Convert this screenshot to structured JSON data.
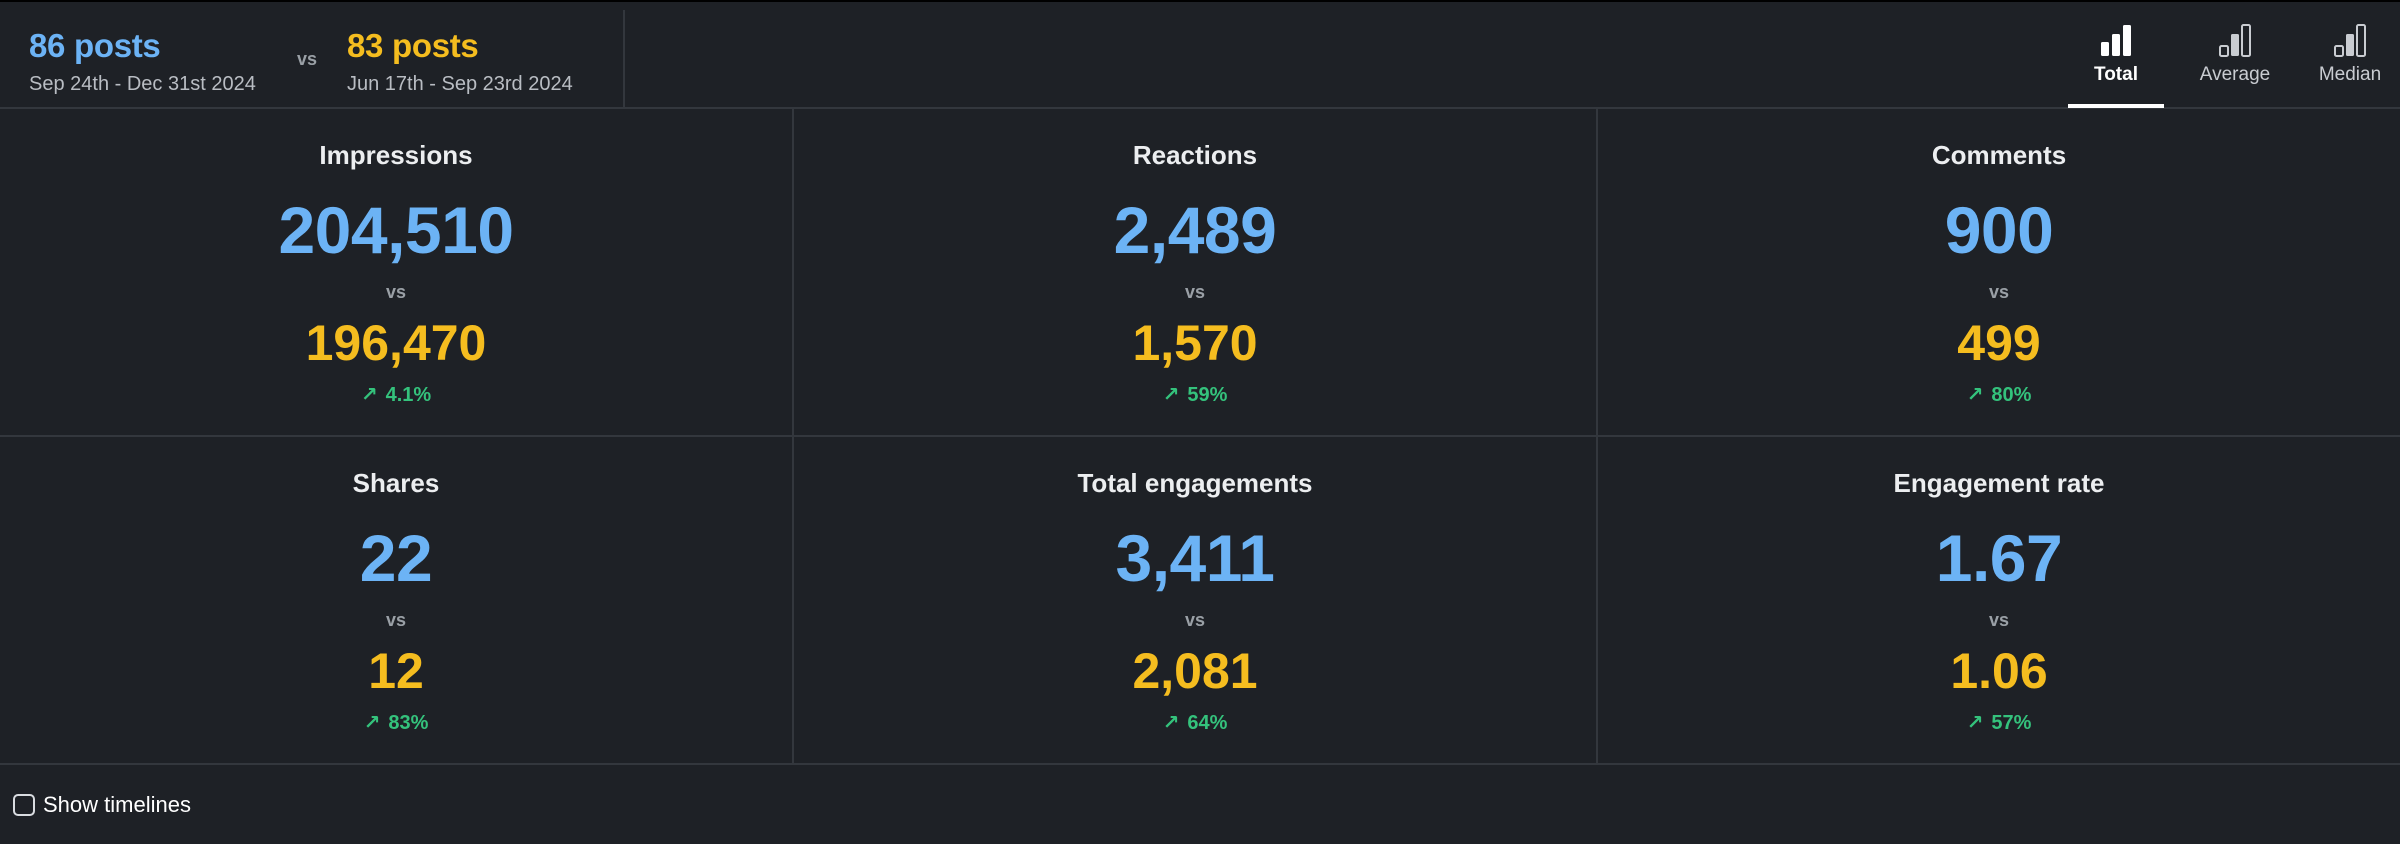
{
  "header": {
    "current_period": {
      "posts": "86 posts",
      "dates": "Sep 24th - Dec 31st 2024",
      "color": "#6cb3f5"
    },
    "vs_label": "vs",
    "previous_period": {
      "posts": "83 posts",
      "dates": "Jun 17th - Sep 23rd 2024",
      "color": "#f5bd1f"
    },
    "mode_tabs": [
      {
        "label": "Total",
        "icon": "bar-chart-filled-icon",
        "active": true
      },
      {
        "label": "Average",
        "icon": "bar-chart-average-icon",
        "active": false
      },
      {
        "label": "Median",
        "icon": "bar-chart-median-icon",
        "active": false
      }
    ]
  },
  "metrics": [
    {
      "title": "Impressions",
      "current": "204,510",
      "vs": "vs",
      "previous": "196,470",
      "change": "4.1%",
      "trend": "up"
    },
    {
      "title": "Reactions",
      "current": "2,489",
      "vs": "vs",
      "previous": "1,570",
      "change": "59%",
      "trend": "up"
    },
    {
      "title": "Comments",
      "current": "900",
      "vs": "vs",
      "previous": "499",
      "change": "80%",
      "trend": "up"
    },
    {
      "title": "Shares",
      "current": "22",
      "vs": "vs",
      "previous": "12",
      "change": "83%",
      "trend": "up"
    },
    {
      "title": "Total engagements",
      "current": "3,411",
      "vs": "vs",
      "previous": "2,081",
      "change": "64%",
      "trend": "up"
    },
    {
      "title": "Engagement rate",
      "current": "1.67",
      "vs": "vs",
      "previous": "1.06",
      "change": "57%",
      "trend": "up"
    }
  ],
  "footer": {
    "show_timelines_label": "Show timelines",
    "show_timelines_checked": false
  },
  "colors": {
    "background": "#1e2126",
    "divider": "#33373d",
    "positive_change": "#34c27c"
  }
}
